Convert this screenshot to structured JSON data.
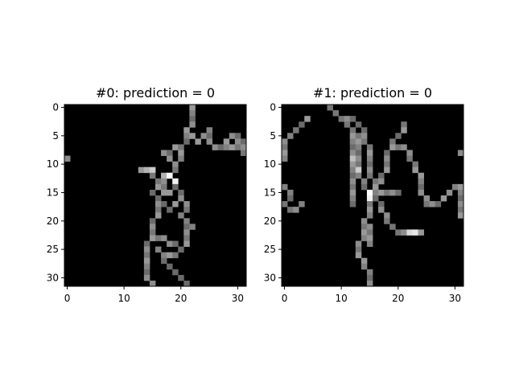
{
  "chart_data": [
    {
      "type": "heatmap",
      "title": "#0: prediction = 0",
      "colormap": "gray",
      "xlim": [
        -0.5,
        31.5
      ],
      "ylim": [
        31.5,
        -0.5
      ],
      "xticks": [
        0,
        10,
        20,
        30
      ],
      "yticks": [
        0,
        5,
        10,
        15,
        20,
        25,
        30
      ],
      "xtick_labels": [
        "0",
        "10",
        "20",
        "30"
      ],
      "ytick_labels": [
        "0",
        "5",
        "10",
        "15",
        "20",
        "25",
        "30"
      ],
      "image_size": [
        32,
        32
      ],
      "strokes": [
        [
          [
            22,
            0
          ],
          [
            22,
            2
          ],
          [
            21,
            4
          ],
          [
            21,
            6
          ],
          [
            20,
            7
          ],
          [
            20,
            9
          ],
          [
            19,
            10
          ],
          [
            18,
            12
          ],
          [
            17,
            13
          ],
          [
            16,
            13
          ],
          [
            15,
            12
          ],
          [
            14,
            11
          ],
          [
            13,
            11
          ]
        ],
        [
          [
            21,
            4
          ],
          [
            22,
            5
          ],
          [
            23,
            6
          ],
          [
            24,
            5
          ],
          [
            25,
            4
          ],
          [
            25,
            6
          ],
          [
            27,
            7
          ],
          [
            29,
            7
          ],
          [
            31,
            6
          ]
        ],
        [
          [
            20,
            7
          ],
          [
            19,
            7
          ],
          [
            18,
            8
          ],
          [
            17,
            8
          ],
          [
            18,
            9
          ]
        ],
        [
          [
            28,
            6
          ],
          [
            29,
            5
          ],
          [
            30,
            5
          ],
          [
            31,
            8
          ]
        ],
        [
          [
            18,
            12
          ],
          [
            19,
            14
          ],
          [
            20,
            16
          ],
          [
            21,
            18
          ],
          [
            20,
            19
          ],
          [
            21,
            20
          ],
          [
            22,
            21
          ]
        ],
        [
          [
            17,
            13
          ],
          [
            17,
            15
          ],
          [
            16,
            16
          ],
          [
            16,
            18
          ],
          [
            15,
            20
          ],
          [
            15,
            22
          ],
          [
            14,
            24
          ],
          [
            14,
            26
          ],
          [
            14,
            28
          ],
          [
            14,
            30
          ],
          [
            15,
            31
          ]
        ],
        [
          [
            15,
            22
          ],
          [
            17,
            23
          ],
          [
            19,
            24
          ],
          [
            20,
            25
          ]
        ],
        [
          [
            16,
            25
          ],
          [
            17,
            27
          ],
          [
            18,
            28
          ],
          [
            19,
            29
          ],
          [
            20,
            30
          ],
          [
            21,
            31
          ]
        ],
        [
          [
            18,
            26
          ],
          [
            20,
            25
          ],
          [
            21,
            23
          ],
          [
            21,
            21
          ],
          [
            20,
            19
          ]
        ],
        [
          [
            19,
            17
          ],
          [
            18,
            18
          ],
          [
            17,
            17
          ]
        ],
        [
          [
            16,
            14
          ],
          [
            15,
            15
          ],
          [
            16,
            16
          ]
        ]
      ],
      "bright_spots": [
        [
          18,
          12,
          1.0
        ],
        [
          19,
          13,
          0.95
        ],
        [
          17,
          12,
          0.7
        ],
        [
          15,
          11,
          0.8
        ],
        [
          14,
          11,
          0.7
        ],
        [
          18,
          15,
          0.6
        ]
      ],
      "isolated_dots": [
        [
          0,
          9,
          0.55
        ]
      ]
    },
    {
      "type": "heatmap",
      "title": "#1: prediction = 0",
      "colormap": "gray",
      "xlim": [
        -0.5,
        31.5
      ],
      "ylim": [
        31.5,
        -0.5
      ],
      "xticks": [
        0,
        10,
        20,
        30
      ],
      "yticks": [
        0,
        5,
        10,
        15,
        20,
        25,
        30
      ],
      "xtick_labels": [
        "0",
        "10",
        "20",
        "30"
      ],
      "ytick_labels": [
        "0",
        "5",
        "10",
        "15",
        "20",
        "25",
        "30"
      ],
      "image_size": [
        32,
        32
      ],
      "strokes": [
        [
          [
            8,
            0
          ],
          [
            9,
            1
          ],
          [
            10,
            2
          ],
          [
            11,
            3
          ],
          [
            12,
            4
          ],
          [
            13,
            6
          ],
          [
            13,
            8
          ],
          [
            13,
            10
          ],
          [
            13,
            12
          ],
          [
            14,
            14
          ],
          [
            15,
            16
          ],
          [
            15,
            18
          ],
          [
            14,
            20
          ],
          [
            14,
            22
          ],
          [
            13,
            24
          ],
          [
            13,
            26
          ],
          [
            14,
            28
          ],
          [
            15,
            30
          ],
          [
            15,
            31
          ]
        ],
        [
          [
            11,
            2
          ],
          [
            12,
            2
          ],
          [
            13,
            3
          ],
          [
            14,
            4
          ],
          [
            14,
            6
          ],
          [
            15,
            8
          ],
          [
            15,
            10
          ],
          [
            15,
            12
          ],
          [
            16,
            14
          ]
        ],
        [
          [
            12,
            5
          ],
          [
            12,
            8
          ],
          [
            12,
            11
          ],
          [
            12,
            14
          ],
          [
            12,
            17
          ]
        ],
        [
          [
            16,
            14
          ],
          [
            17,
            12
          ],
          [
            18,
            10
          ],
          [
            18,
            8
          ],
          [
            19,
            6
          ],
          [
            20,
            5
          ],
          [
            21,
            3
          ]
        ],
        [
          [
            19,
            6
          ],
          [
            21,
            7
          ],
          [
            22,
            9
          ],
          [
            23,
            11
          ],
          [
            24,
            13
          ],
          [
            24,
            15
          ],
          [
            25,
            17
          ],
          [
            27,
            17
          ],
          [
            28,
            16
          ],
          [
            29,
            15
          ],
          [
            30,
            14
          ],
          [
            31,
            14
          ]
        ],
        [
          [
            30,
            14
          ],
          [
            31,
            15
          ],
          [
            31,
            17
          ],
          [
            31,
            19
          ]
        ],
        [
          [
            16,
            16
          ],
          [
            17,
            18
          ],
          [
            18,
            20
          ],
          [
            19,
            21
          ],
          [
            20,
            22
          ],
          [
            22,
            22
          ],
          [
            24,
            22
          ]
        ],
        [
          [
            16,
            15
          ],
          [
            18,
            15
          ],
          [
            20,
            15
          ]
        ],
        [
          [
            4,
            2
          ],
          [
            3,
            3
          ],
          [
            2,
            4
          ],
          [
            1,
            5
          ],
          [
            0,
            6
          ],
          [
            0,
            9
          ]
        ],
        [
          [
            0,
            14
          ],
          [
            1,
            16
          ],
          [
            0,
            17
          ],
          [
            1,
            18
          ],
          [
            2,
            18
          ],
          [
            3,
            17
          ]
        ],
        [
          [
            14,
            20
          ],
          [
            15,
            22
          ],
          [
            15,
            24
          ]
        ]
      ],
      "bright_spots": [
        [
          15,
          15,
          1.0
        ],
        [
          15,
          16,
          0.95
        ],
        [
          13,
          11,
          0.8
        ],
        [
          12,
          9,
          0.75
        ],
        [
          23,
          22,
          0.9
        ],
        [
          22,
          22,
          0.85
        ]
      ],
      "isolated_dots": [
        [
          31,
          8,
          0.55
        ]
      ]
    }
  ]
}
